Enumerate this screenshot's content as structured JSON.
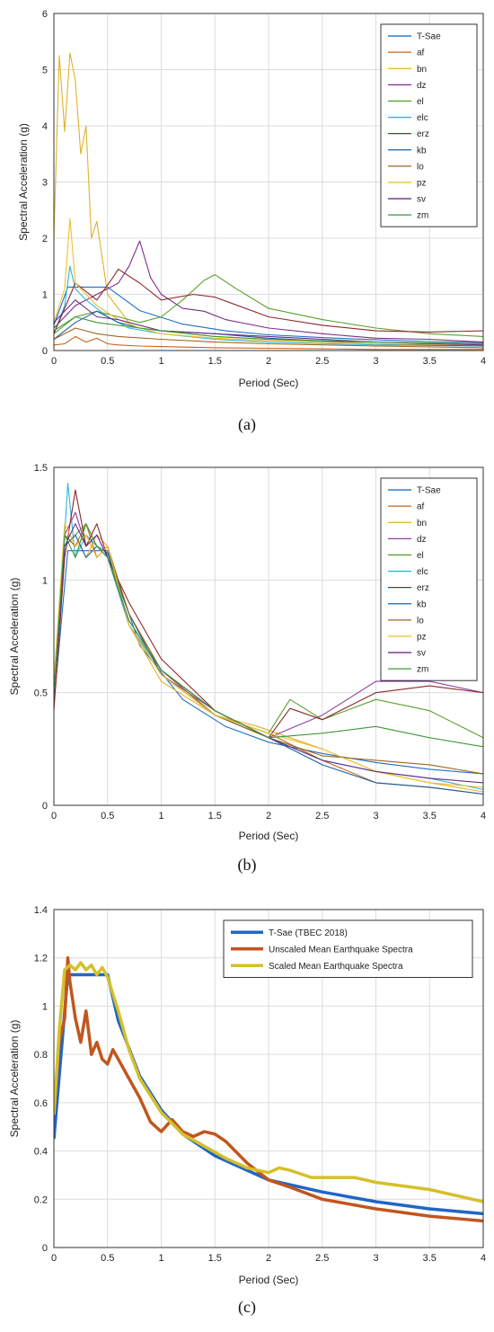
{
  "chart_data": [
    {
      "type": "line",
      "panel_label": "(a)",
      "xlabel": "Period (Sec)",
      "ylabel": "Spectral Acceleration (g)",
      "xlim": [
        0,
        4
      ],
      "ylim": [
        0,
        6
      ],
      "xticks": [
        0,
        0.5,
        1,
        1.5,
        2,
        2.5,
        3,
        3.5,
        4
      ],
      "yticks": [
        0,
        1,
        2,
        3,
        4,
        5,
        6
      ],
      "grid": true,
      "legend_position": "top-right",
      "series": [
        {
          "name": "T-Sae",
          "color": "#1f6fc5",
          "x": [
            0,
            0.13,
            0.5,
            0.8,
            1.2,
            1.6,
            2.0,
            2.5,
            3.0,
            3.5,
            4.0
          ],
          "y": [
            0.45,
            1.13,
            1.13,
            0.71,
            0.47,
            0.35,
            0.28,
            0.23,
            0.19,
            0.16,
            0.14
          ]
        },
        {
          "name": "af",
          "color": "#c8641e",
          "x": [
            0,
            0.1,
            0.2,
            0.3,
            0.4,
            0.5,
            0.6,
            0.8,
            1.0,
            1.5,
            2.0,
            2.5,
            3.0,
            3.5,
            4.0
          ],
          "y": [
            0.1,
            0.12,
            0.25,
            0.15,
            0.22,
            0.12,
            0.1,
            0.08,
            0.07,
            0.05,
            0.04,
            0.03,
            0.02,
            0.02,
            0.02
          ]
        },
        {
          "name": "bn",
          "color": "#e0b22a",
          "x": [
            0,
            0.05,
            0.1,
            0.15,
            0.2,
            0.25,
            0.3,
            0.35,
            0.4,
            0.5,
            0.7,
            1.0,
            1.5,
            2.0,
            3.0,
            4.0
          ],
          "y": [
            2.0,
            5.25,
            3.9,
            5.3,
            4.8,
            3.5,
            4.0,
            2.0,
            2.3,
            1.0,
            0.5,
            0.35,
            0.25,
            0.2,
            0.12,
            0.08
          ]
        },
        {
          "name": "dz",
          "color": "#7b2d8e",
          "x": [
            0,
            0.1,
            0.2,
            0.4,
            0.6,
            0.7,
            0.8,
            0.9,
            1.0,
            1.2,
            1.4,
            1.6,
            2.0,
            2.5,
            3.0,
            3.5,
            4.0
          ],
          "y": [
            0.4,
            0.6,
            0.8,
            1.0,
            1.2,
            1.5,
            1.95,
            1.3,
            1.0,
            0.75,
            0.7,
            0.55,
            0.4,
            0.3,
            0.22,
            0.2,
            0.15
          ]
        },
        {
          "name": "el",
          "color": "#5aa02c",
          "x": [
            0,
            0.2,
            0.4,
            0.6,
            0.8,
            1.0,
            1.2,
            1.4,
            1.5,
            1.7,
            2.0,
            2.5,
            3.0,
            3.5,
            4.0
          ],
          "y": [
            0.3,
            0.6,
            0.7,
            0.6,
            0.5,
            0.6,
            0.9,
            1.25,
            1.35,
            1.1,
            0.75,
            0.55,
            0.4,
            0.3,
            0.25
          ]
        },
        {
          "name": "elc",
          "color": "#2fb4dc",
          "x": [
            0,
            0.1,
            0.15,
            0.2,
            0.3,
            0.5,
            0.7,
            1.0,
            1.5,
            2.0,
            3.0,
            4.0
          ],
          "y": [
            0.3,
            0.8,
            1.5,
            1.1,
            0.9,
            0.6,
            0.4,
            0.3,
            0.2,
            0.15,
            0.1,
            0.08
          ]
        },
        {
          "name": "erz",
          "color": "#8b2a2a",
          "x": [
            0,
            0.2,
            0.4,
            0.55,
            0.6,
            0.8,
            1.0,
            1.3,
            1.5,
            2.0,
            2.5,
            3.0,
            3.5,
            4.0
          ],
          "y": [
            0.3,
            1.2,
            0.9,
            1.3,
            1.45,
            1.2,
            0.9,
            1.0,
            0.95,
            0.6,
            0.45,
            0.35,
            0.33,
            0.35
          ]
        },
        {
          "name": "kb",
          "color": "#1a5fa0",
          "x": [
            0,
            0.2,
            0.4,
            0.6,
            0.8,
            1.0,
            1.5,
            2.0,
            3.0,
            4.0
          ],
          "y": [
            0.2,
            0.5,
            0.7,
            0.5,
            0.4,
            0.35,
            0.3,
            0.22,
            0.12,
            0.08
          ]
        },
        {
          "name": "lo",
          "color": "#a0661e",
          "x": [
            0,
            0.2,
            0.4,
            0.6,
            1.0,
            1.5,
            2.0,
            3.0,
            4.0
          ],
          "y": [
            0.2,
            0.4,
            0.3,
            0.25,
            0.2,
            0.15,
            0.12,
            0.08,
            0.05
          ]
        },
        {
          "name": "pz",
          "color": "#f0c030",
          "x": [
            0,
            0.1,
            0.15,
            0.2,
            0.3,
            0.4,
            0.6,
            0.8,
            1.0,
            1.5,
            2.0,
            3.0,
            4.0
          ],
          "y": [
            0.5,
            1.1,
            2.35,
            1.2,
            1.0,
            0.8,
            0.55,
            0.4,
            0.3,
            0.22,
            0.18,
            0.12,
            0.1
          ]
        },
        {
          "name": "sv",
          "color": "#6a2c8a",
          "x": [
            0,
            0.2,
            0.4,
            0.6,
            0.8,
            1.0,
            1.5,
            2.0,
            3.0,
            4.0
          ],
          "y": [
            0.5,
            0.9,
            0.6,
            0.55,
            0.45,
            0.35,
            0.3,
            0.25,
            0.15,
            0.1
          ]
        },
        {
          "name": "zm",
          "color": "#3e9a3a",
          "x": [
            0,
            0.2,
            0.4,
            0.6,
            0.8,
            1.0,
            1.5,
            2.0,
            3.0,
            4.0
          ],
          "y": [
            0.35,
            0.6,
            0.5,
            0.45,
            0.4,
            0.35,
            0.25,
            0.2,
            0.15,
            0.12
          ]
        }
      ]
    },
    {
      "type": "line",
      "panel_label": "(b)",
      "xlabel": "Period (Sec)",
      "ylabel": "Spectral Acceleration (g)",
      "xlim": [
        0,
        4
      ],
      "ylim": [
        0,
        1.5
      ],
      "xticks": [
        0,
        0.5,
        1,
        1.5,
        2,
        2.5,
        3,
        3.5,
        4
      ],
      "yticks": [
        0,
        0.5,
        1,
        1.5
      ],
      "ytick_labels": [
        "0",
        "0.5",
        "1",
        "1.5"
      ],
      "grid": true,
      "legend_position": "top-right",
      "series": [
        {
          "name": "T-Sae",
          "color": "#1f6fc5",
          "x": [
            0,
            0.13,
            0.5,
            0.8,
            1.2,
            1.6,
            2.0,
            2.5,
            3.0,
            3.5,
            4.0
          ],
          "y": [
            0.45,
            1.13,
            1.13,
            0.71,
            0.47,
            0.35,
            0.28,
            0.23,
            0.19,
            0.16,
            0.14
          ]
        },
        {
          "name": "af",
          "color": "#c8641e",
          "x": [
            0,
            0.1,
            0.2,
            0.3,
            0.4,
            0.5,
            0.7,
            1.0,
            1.5,
            2.0,
            2.5,
            3.0,
            3.5,
            4.0
          ],
          "y": [
            0.5,
            1.2,
            1.15,
            1.25,
            1.1,
            1.15,
            0.8,
            0.6,
            0.4,
            0.32,
            0.2,
            0.1,
            0.08,
            0.05
          ]
        },
        {
          "name": "bn",
          "color": "#e0b22a",
          "x": [
            0,
            0.1,
            0.2,
            0.3,
            0.4,
            0.5,
            0.7,
            1.0,
            1.5,
            1.9,
            2.2,
            2.5,
            3.0,
            3.5,
            4.0
          ],
          "y": [
            0.5,
            1.15,
            1.2,
            1.1,
            1.2,
            1.15,
            0.8,
            0.55,
            0.4,
            0.35,
            0.3,
            0.25,
            0.15,
            0.1,
            0.06
          ]
        },
        {
          "name": "dz",
          "color": "#8e3fa6",
          "x": [
            0,
            0.1,
            0.2,
            0.3,
            0.4,
            0.5,
            0.7,
            1.0,
            1.5,
            2.0,
            2.5,
            3.0,
            3.5,
            4.0
          ],
          "y": [
            0.5,
            1.2,
            1.3,
            1.15,
            1.2,
            1.1,
            0.8,
            0.58,
            0.42,
            0.3,
            0.4,
            0.55,
            0.55,
            0.5
          ]
        },
        {
          "name": "el",
          "color": "#5aa02c",
          "x": [
            0,
            0.1,
            0.2,
            0.3,
            0.4,
            0.5,
            0.7,
            1.0,
            1.5,
            2.0,
            2.2,
            2.5,
            3.0,
            3.5,
            4.0
          ],
          "y": [
            0.5,
            1.15,
            1.2,
            1.25,
            1.15,
            1.1,
            0.85,
            0.6,
            0.4,
            0.32,
            0.47,
            0.38,
            0.47,
            0.42,
            0.3
          ]
        },
        {
          "name": "elc",
          "color": "#2fb4dc",
          "x": [
            0,
            0.1,
            0.13,
            0.2,
            0.3,
            0.5,
            0.7,
            1.0,
            1.5,
            2.0,
            2.5,
            3.0,
            3.5,
            4.0
          ],
          "y": [
            0.5,
            1.2,
            1.43,
            1.1,
            1.2,
            1.1,
            0.8,
            0.6,
            0.42,
            0.3,
            0.2,
            0.15,
            0.12,
            0.07
          ]
        },
        {
          "name": "erz",
          "color": "#8b2a2a",
          "x": [
            0,
            0.1,
            0.2,
            0.3,
            0.4,
            0.5,
            0.7,
            1.0,
            1.5,
            2.0,
            2.2,
            2.5,
            3.0,
            3.5,
            4.0
          ],
          "y": [
            0.42,
            1.1,
            1.4,
            1.15,
            1.25,
            1.1,
            0.9,
            0.65,
            0.42,
            0.3,
            0.43,
            0.38,
            0.5,
            0.53,
            0.5
          ]
        },
        {
          "name": "kb",
          "color": "#1a5fa0",
          "x": [
            0,
            0.1,
            0.2,
            0.3,
            0.4,
            0.5,
            0.7,
            1.0,
            1.5,
            2.0,
            2.5,
            3.0,
            3.5,
            4.0
          ],
          "y": [
            0.5,
            1.15,
            1.2,
            1.1,
            1.15,
            1.12,
            0.85,
            0.58,
            0.4,
            0.3,
            0.18,
            0.1,
            0.08,
            0.05
          ]
        },
        {
          "name": "lo",
          "color": "#a0661e",
          "x": [
            0,
            0.1,
            0.2,
            0.3,
            0.4,
            0.5,
            0.7,
            1.0,
            1.5,
            2.0,
            2.5,
            3.0,
            3.5,
            4.0
          ],
          "y": [
            0.5,
            1.2,
            1.15,
            1.2,
            1.1,
            1.15,
            0.85,
            0.6,
            0.4,
            0.3,
            0.22,
            0.2,
            0.18,
            0.14
          ]
        },
        {
          "name": "pz",
          "color": "#f0c030",
          "x": [
            0,
            0.1,
            0.2,
            0.3,
            0.4,
            0.5,
            0.7,
            1.0,
            1.5,
            2.0,
            2.5,
            3.0,
            3.5,
            4.0
          ],
          "y": [
            0.55,
            1.25,
            1.15,
            1.2,
            1.1,
            1.15,
            0.8,
            0.58,
            0.4,
            0.32,
            0.25,
            0.15,
            0.1,
            0.08
          ]
        },
        {
          "name": "sv",
          "color": "#6a2c8a",
          "x": [
            0,
            0.1,
            0.2,
            0.3,
            0.4,
            0.5,
            0.7,
            1.0,
            1.5,
            2.0,
            2.5,
            3.0,
            3.5,
            4.0
          ],
          "y": [
            0.5,
            1.15,
            1.25,
            1.15,
            1.2,
            1.1,
            0.82,
            0.6,
            0.42,
            0.3,
            0.2,
            0.15,
            0.12,
            0.1
          ]
        },
        {
          "name": "zm",
          "color": "#3e9a3a",
          "x": [
            0,
            0.1,
            0.2,
            0.3,
            0.4,
            0.5,
            0.7,
            1.0,
            1.5,
            2.0,
            2.5,
            3.0,
            3.5,
            4.0
          ],
          "y": [
            0.5,
            1.2,
            1.1,
            1.25,
            1.15,
            1.1,
            0.82,
            0.6,
            0.42,
            0.3,
            0.32,
            0.35,
            0.3,
            0.26
          ]
        }
      ]
    },
    {
      "type": "line",
      "panel_label": "(c)",
      "xlabel": "Period (Sec)",
      "ylabel": "Spectral Acceleration (g)",
      "xlim": [
        0,
        4
      ],
      "ylim": [
        0,
        1.4
      ],
      "xticks": [
        0,
        0.5,
        1,
        1.5,
        2,
        2.5,
        3,
        3.5,
        4
      ],
      "yticks": [
        0,
        0.2,
        0.4,
        0.6,
        0.8,
        1,
        1.2,
        1.4
      ],
      "grid": true,
      "legend_position": "top-right",
      "series": [
        {
          "name": "T-Sae (TBEC 2018)",
          "color": "#2166c4",
          "width": 3.5,
          "x": [
            0,
            0.13,
            0.5,
            0.6,
            0.8,
            1.0,
            1.2,
            1.5,
            2.0,
            2.5,
            3.0,
            3.5,
            4.0
          ],
          "y": [
            0.45,
            1.13,
            1.13,
            0.94,
            0.71,
            0.57,
            0.47,
            0.38,
            0.28,
            0.23,
            0.19,
            0.16,
            0.14
          ]
        },
        {
          "name": "Unscaled Mean Earthquake Spectra",
          "color": "#c1561e",
          "width": 3.5,
          "x": [
            0,
            0.05,
            0.1,
            0.13,
            0.15,
            0.2,
            0.25,
            0.3,
            0.35,
            0.4,
            0.45,
            0.5,
            0.55,
            0.6,
            0.7,
            0.8,
            0.9,
            1.0,
            1.1,
            1.2,
            1.3,
            1.4,
            1.5,
            1.6,
            1.8,
            2.0,
            2.2,
            2.5,
            3.0,
            3.5,
            4.0
          ],
          "y": [
            0.55,
            0.85,
            0.95,
            1.2,
            1.1,
            0.95,
            0.85,
            0.98,
            0.8,
            0.85,
            0.78,
            0.76,
            0.82,
            0.78,
            0.7,
            0.62,
            0.52,
            0.48,
            0.53,
            0.48,
            0.46,
            0.48,
            0.47,
            0.44,
            0.35,
            0.28,
            0.25,
            0.2,
            0.16,
            0.13,
            0.11
          ]
        },
        {
          "name": "Scaled Mean Earthquake Spectra",
          "color": "#d4c02a",
          "width": 3.5,
          "x": [
            0,
            0.05,
            0.1,
            0.15,
            0.2,
            0.25,
            0.3,
            0.35,
            0.4,
            0.45,
            0.5,
            0.55,
            0.6,
            0.7,
            0.8,
            1.0,
            1.2,
            1.4,
            1.6,
            1.8,
            2.0,
            2.1,
            2.2,
            2.4,
            2.6,
            2.8,
            3.0,
            3.5,
            4.0
          ],
          "y": [
            0.55,
            0.9,
            1.15,
            1.17,
            1.15,
            1.18,
            1.15,
            1.17,
            1.13,
            1.16,
            1.12,
            1.05,
            0.98,
            0.82,
            0.7,
            0.56,
            0.47,
            0.42,
            0.37,
            0.33,
            0.31,
            0.33,
            0.32,
            0.29,
            0.29,
            0.29,
            0.27,
            0.24,
            0.19
          ]
        }
      ]
    }
  ]
}
